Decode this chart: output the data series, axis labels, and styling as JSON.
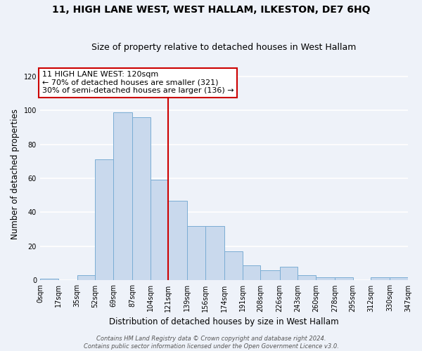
{
  "title": "11, HIGH LANE WEST, WEST HALLAM, ILKESTON, DE7 6HQ",
  "subtitle": "Size of property relative to detached houses in West Hallam",
  "xlabel": "Distribution of detached houses by size in West Hallam",
  "ylabel": "Number of detached properties",
  "bin_edges": [
    0,
    17,
    35,
    52,
    69,
    87,
    104,
    121,
    139,
    156,
    174,
    191,
    208,
    226,
    243,
    260,
    278,
    295,
    312,
    330,
    347
  ],
  "bin_heights": [
    1,
    0,
    3,
    71,
    99,
    96,
    59,
    47,
    32,
    32,
    17,
    9,
    6,
    8,
    3,
    2,
    2,
    0,
    2,
    2
  ],
  "bar_facecolor": "#c9d9ed",
  "bar_edgecolor": "#7aadd4",
  "vline_x": 121,
  "vline_color": "#cc0000",
  "annotation_line1": "11 HIGH LANE WEST: 120sqm",
  "annotation_line2": "← 70% of detached houses are smaller (321)",
  "annotation_line3": "30% of semi-detached houses are larger (136) →",
  "annotation_box_edgecolor": "#cc0000",
  "annotation_box_facecolor": "white",
  "ylim": [
    0,
    125
  ],
  "yticks": [
    0,
    20,
    40,
    60,
    80,
    100,
    120
  ],
  "xtick_labels": [
    "0sqm",
    "17sqm",
    "35sqm",
    "52sqm",
    "69sqm",
    "87sqm",
    "104sqm",
    "121sqm",
    "139sqm",
    "156sqm",
    "174sqm",
    "191sqm",
    "208sqm",
    "226sqm",
    "243sqm",
    "260sqm",
    "278sqm",
    "295sqm",
    "312sqm",
    "330sqm",
    "347sqm"
  ],
  "footer_line1": "Contains HM Land Registry data © Crown copyright and database right 2024.",
  "footer_line2": "Contains public sector information licensed under the Open Government Licence v3.0.",
  "background_color": "#eef2f9",
  "grid_color": "#ffffff",
  "title_fontsize": 10,
  "subtitle_fontsize": 9,
  "axis_label_fontsize": 8.5,
  "tick_fontsize": 7,
  "annotation_fontsize": 8,
  "footer_fontsize": 6
}
